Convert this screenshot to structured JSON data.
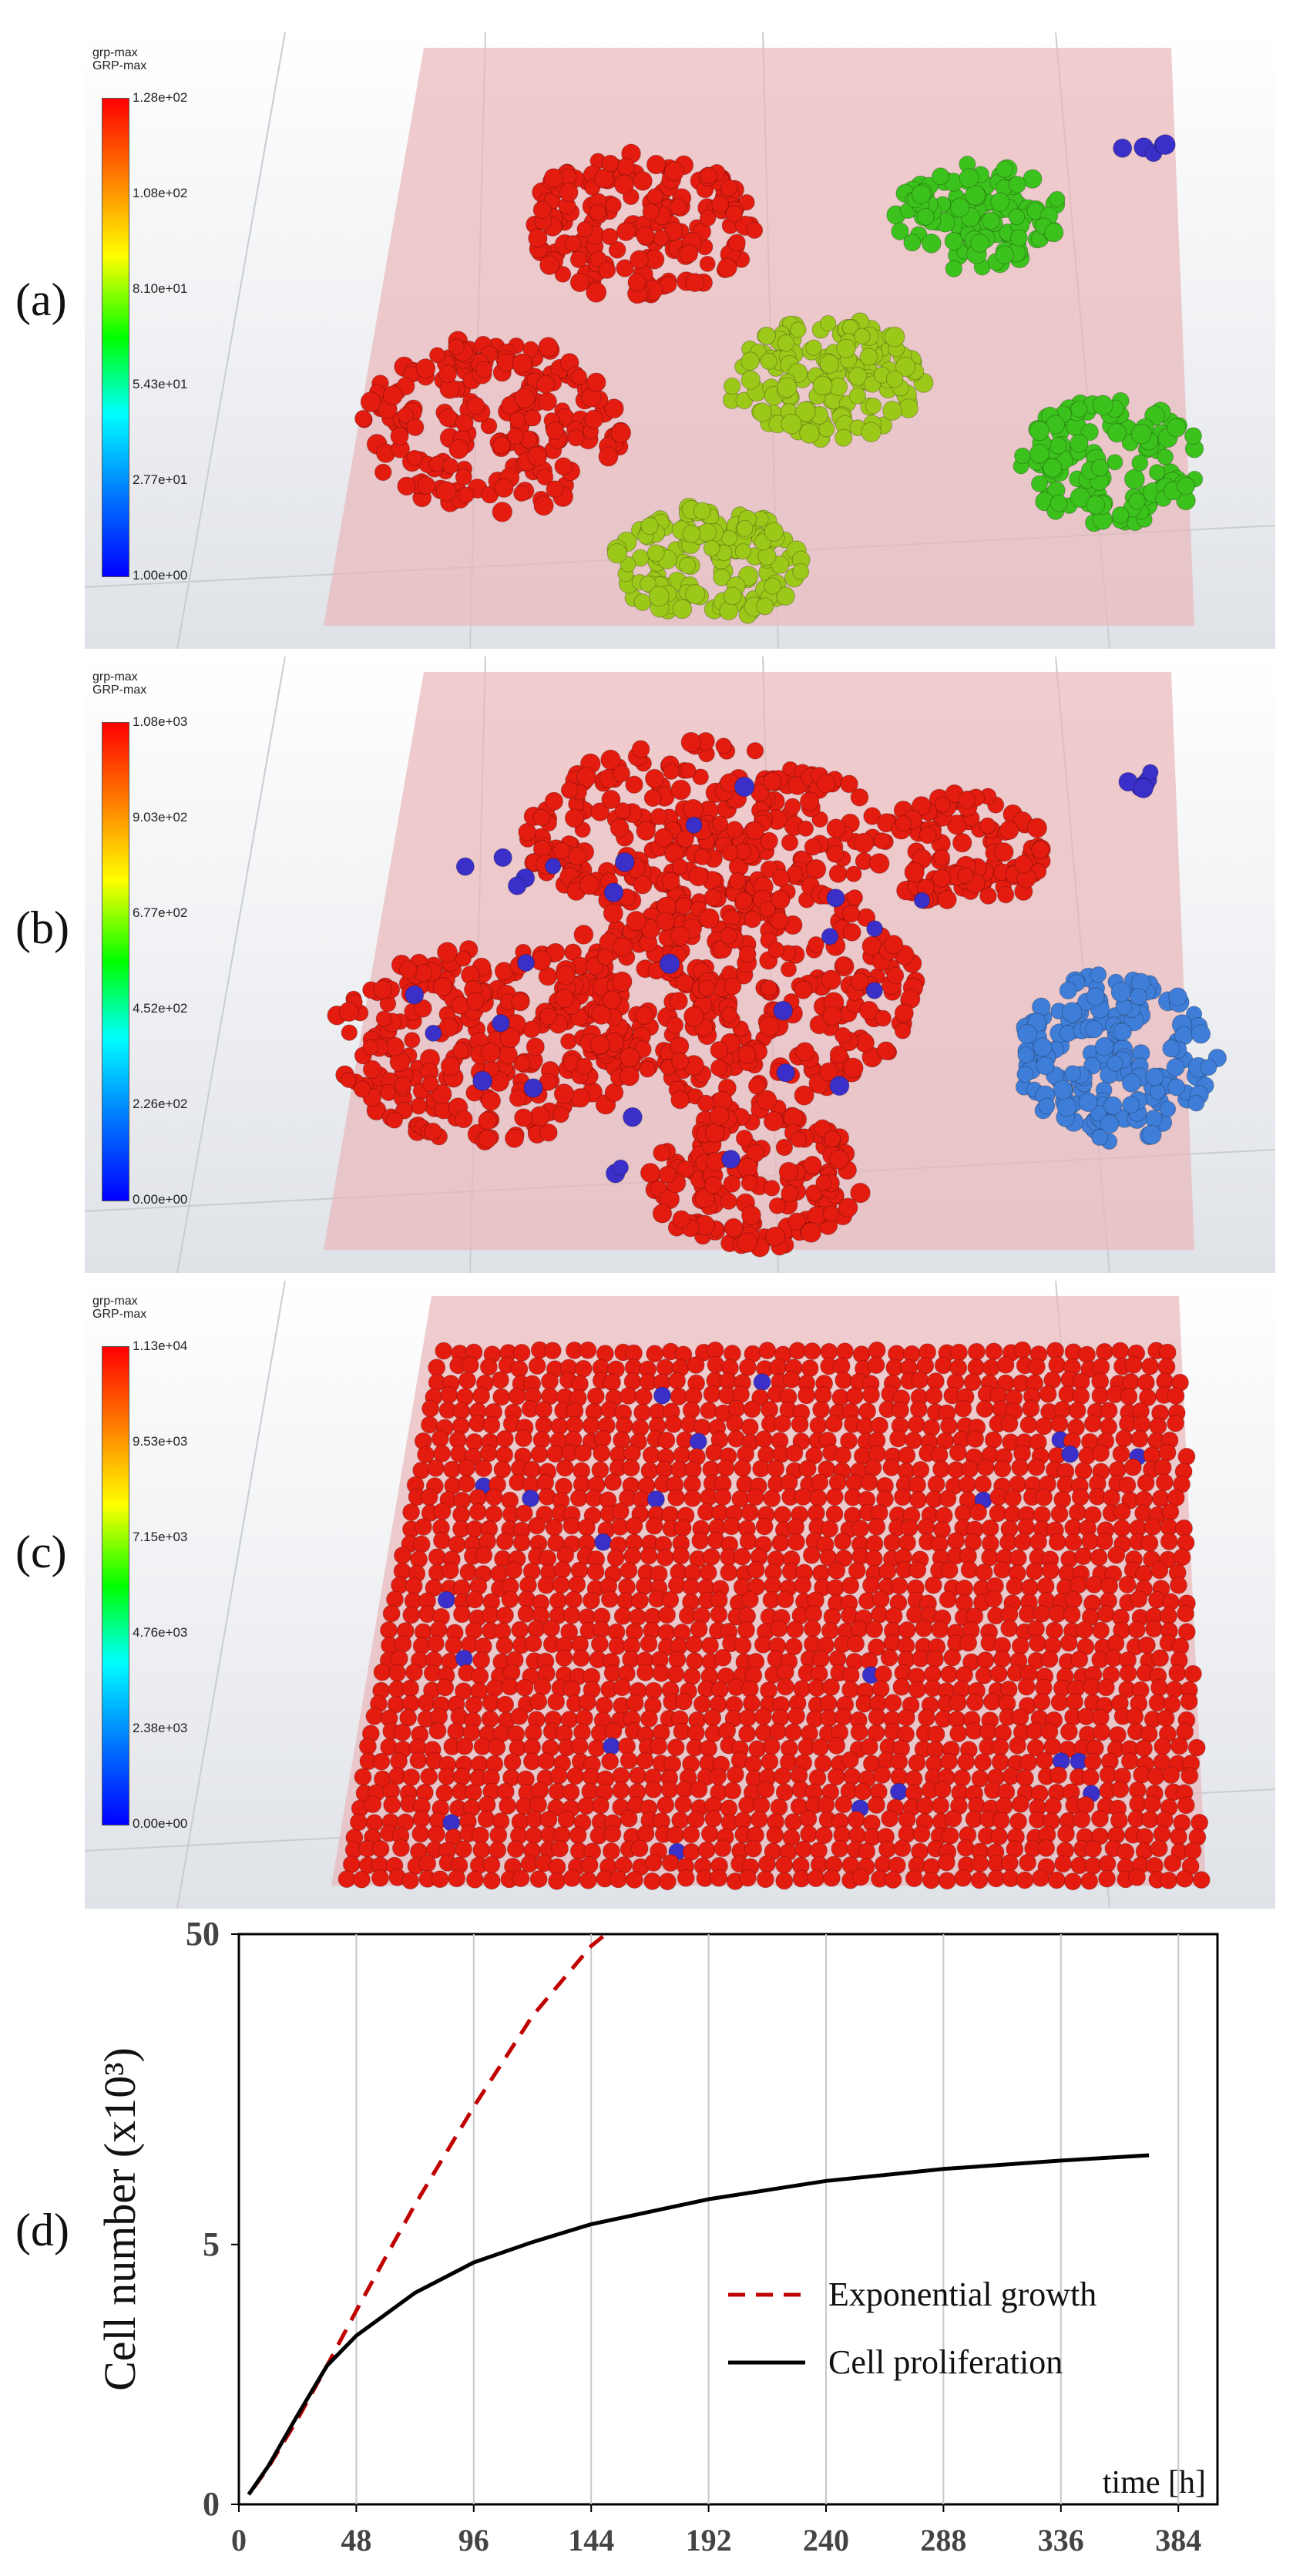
{
  "panels": [
    {
      "label": "(a)",
      "legend_title_1": "grp-max",
      "legend_title_2": "GRP-max",
      "ticks": [
        "1.28e+02",
        "1.08e+02",
        "8.10e+01",
        "5.43e+01",
        "2.77e+01",
        "1.00e+00"
      ]
    },
    {
      "label": "(b)",
      "legend_title_1": "grp-max",
      "legend_title_2": "GRP-max",
      "ticks": [
        "1.08e+03",
        "9.03e+02",
        "6.77e+02",
        "4.52e+02",
        "2.26e+02",
        "0.00e+00"
      ]
    },
    {
      "label": "(c)",
      "legend_title_1": "grp-max",
      "legend_title_2": "GRP-max",
      "ticks": [
        "1.13e+04",
        "9.53e+03",
        "7.15e+03",
        "4.76e+03",
        "2.38e+03",
        "0.00e+00"
      ]
    }
  ],
  "chart_label": "(d)",
  "colors": {
    "red_cell": "#e41c10",
    "green_cell": "#3cc21c",
    "yellowgreen_cell": "#9cc81a",
    "blue_cell": "#3a2fc8",
    "steel_cell": "#3f7ed8",
    "box": "#e9b7b9",
    "exp_line": "#c00000",
    "prolif_line": "#000000"
  },
  "chart_data": {
    "type": "line",
    "xlabel": "time [h]",
    "ylabel": "Cell number (x10³)",
    "x_ticks": [
      0,
      48,
      96,
      144,
      192,
      240,
      288,
      336,
      384
    ],
    "y_ticks": [
      0,
      5,
      50
    ],
    "xlim": [
      0,
      400
    ],
    "y_scale": "log(1+y)",
    "grid": "vertical",
    "legend_position": "bottom-right",
    "series": [
      {
        "name": "Exponential growth",
        "style": "dashed",
        "x": [
          6,
          12,
          24,
          36,
          48,
          60,
          72,
          96,
          120,
          144,
          150
        ],
        "y": [
          0.12,
          0.29,
          0.8,
          1.6,
          2.8,
          4.5,
          6.9,
          14.5,
          28,
          46,
          50
        ]
      },
      {
        "name": "Cell proliferation",
        "style": "solid",
        "x": [
          4,
          12,
          24,
          36,
          48,
          72,
          96,
          120,
          144,
          192,
          240,
          288,
          336,
          372
        ],
        "y": [
          0.07,
          0.3,
          0.85,
          1.6,
          2.2,
          3.3,
          4.3,
          5.1,
          5.9,
          7.2,
          8.3,
          9.1,
          9.7,
          10.1
        ]
      }
    ]
  }
}
